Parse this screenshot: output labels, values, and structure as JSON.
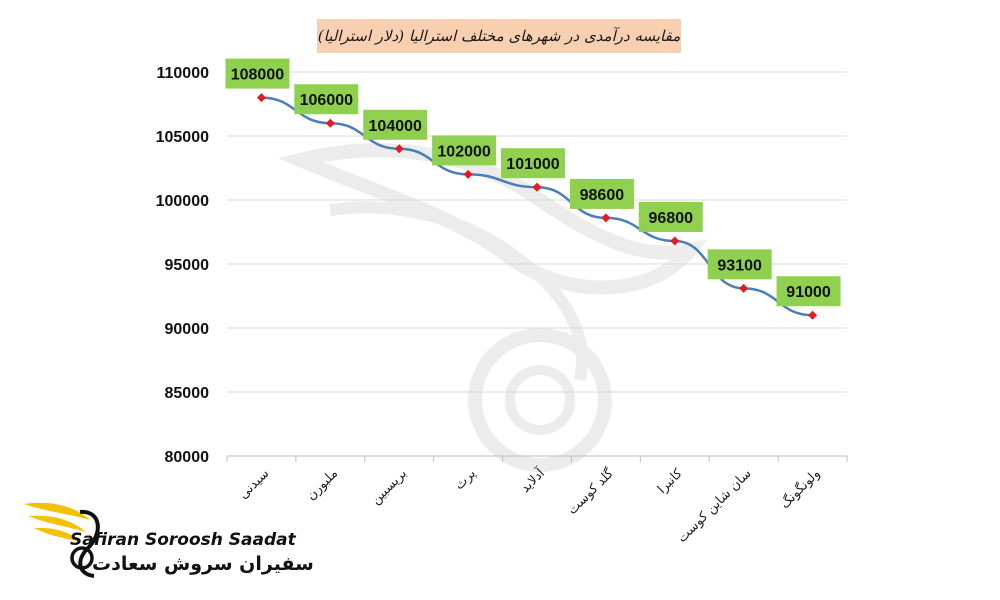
{
  "chart_data": {
    "type": "line",
    "title": "مقایسه درآمدی در شهرهای مختلف استرالیا (دلار استرالیا)",
    "categories": [
      "سیدنی",
      "ملبورن",
      "بریسبین",
      "پرث",
      "آدلاید",
      "گلد کوست",
      "کانبرا",
      "سان شاین کوست",
      "ولونگونگ"
    ],
    "values": [
      108000,
      106000,
      104000,
      102000,
      101000,
      98600,
      96800,
      93100,
      91000
    ],
    "ylim": [
      80000,
      110000
    ],
    "yticks": [
      80000,
      85000,
      90000,
      95000,
      100000,
      105000,
      110000
    ],
    "grid": true,
    "line_color": "#4a7ebb",
    "marker_color": "#e8191f",
    "label_bg_color": "#8fd14f",
    "title_bg_color": "#f8cfb0"
  },
  "logo": {
    "name_en": "Safiran Soroosh Saadat",
    "name_fa": "سفیران سروش سعادت",
    "accent_color": "#f2c200"
  }
}
